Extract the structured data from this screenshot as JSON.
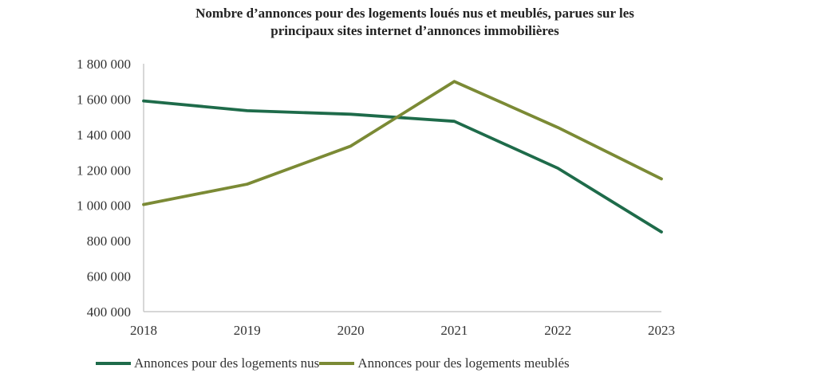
{
  "chart_data": {
    "type": "line",
    "title_lines": [
      "Nombre d’annonces pour des logements loués nus et meublés, parues sur les",
      "principaux sites internet d’annonces immobilières"
    ],
    "x": [
      "2018",
      "2019",
      "2020",
      "2021",
      "2022",
      "2023"
    ],
    "ylim": [
      400000,
      1800000
    ],
    "y_ticks": [
      400000,
      600000,
      800000,
      1000000,
      1200000,
      1400000,
      1600000,
      1800000
    ],
    "y_tick_labels": [
      "400 000",
      "600 000",
      "800 000",
      "1 000 000",
      "1 200 000",
      "1 400 000",
      "1 600 000",
      "1 800 000"
    ],
    "grid": false,
    "legend_position": "bottom",
    "series": [
      {
        "name": "Annonces pour des logements nus",
        "color": "#1e6b4a",
        "values": [
          1590000,
          1535000,
          1515000,
          1475000,
          1210000,
          850000
        ]
      },
      {
        "name": "Annonces pour des logements meublés",
        "color": "#7b8a35",
        "values": [
          1005000,
          1120000,
          1335000,
          1700000,
          1440000,
          1150000
        ]
      }
    ]
  }
}
